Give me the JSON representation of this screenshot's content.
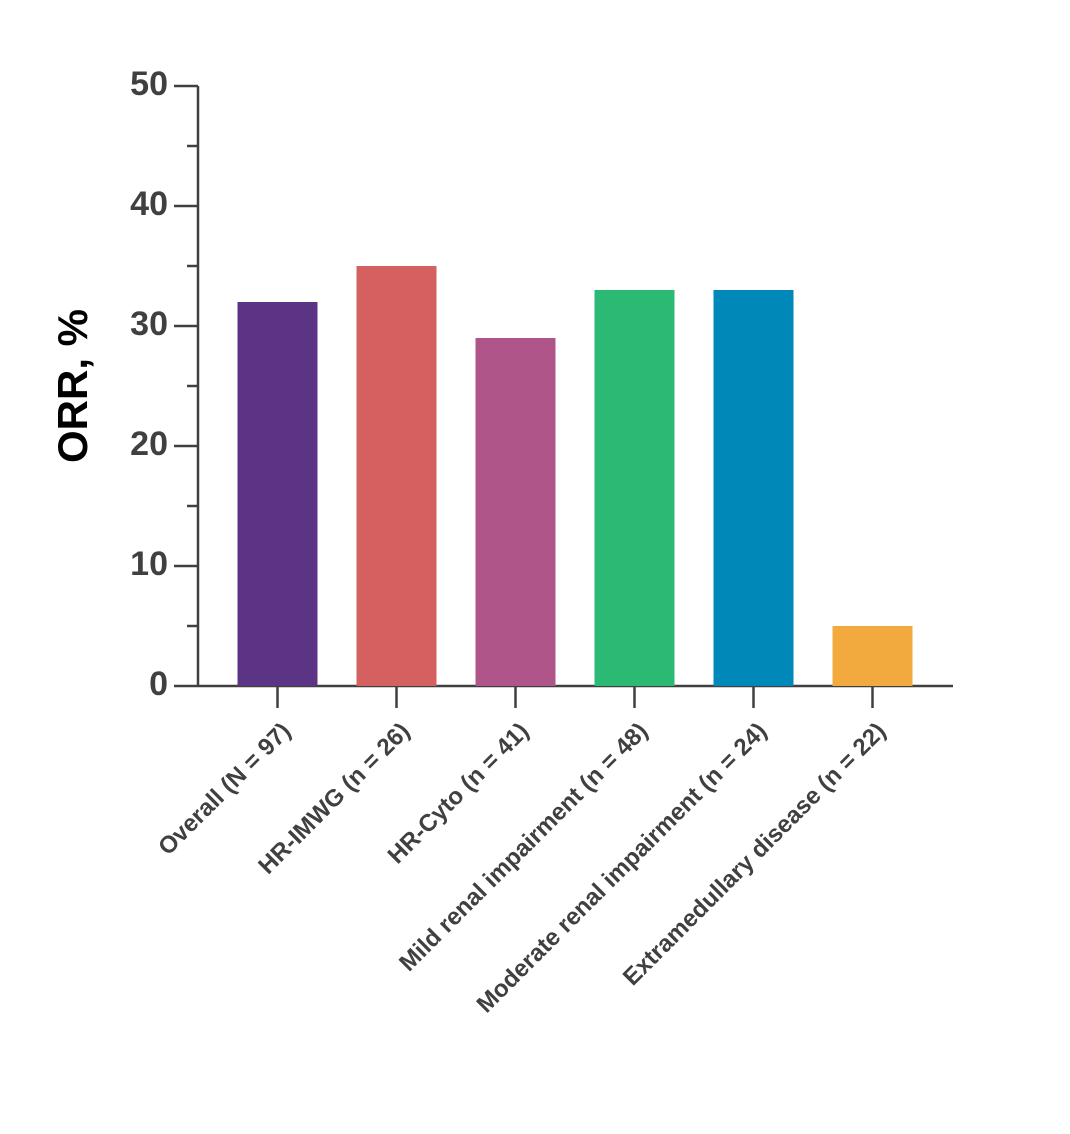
{
  "chart_data": {
    "type": "bar",
    "y_label": "ORR, %",
    "categories": [
      "Overall (N = 97)",
      "HR-IMWG (n = 26)",
      "HR-Cyto (n = 41)",
      "Mild renal impairment (n = 48)",
      "Moderate renal impairment (n = 24)",
      "Extramedullary disease (n = 22)"
    ],
    "values": [
      32,
      35,
      29,
      33,
      33,
      5
    ],
    "colors": [
      "#5c3486",
      "#d46060",
      "#b0558a",
      "#2bb974",
      "#0088b8",
      "#f2aa3e"
    ],
    "ylim": [
      0,
      50
    ],
    "yticks": [
      0,
      10,
      20,
      30,
      40,
      50
    ],
    "yminorticks": [
      5,
      15,
      25,
      35,
      45
    ],
    "grid": false
  }
}
